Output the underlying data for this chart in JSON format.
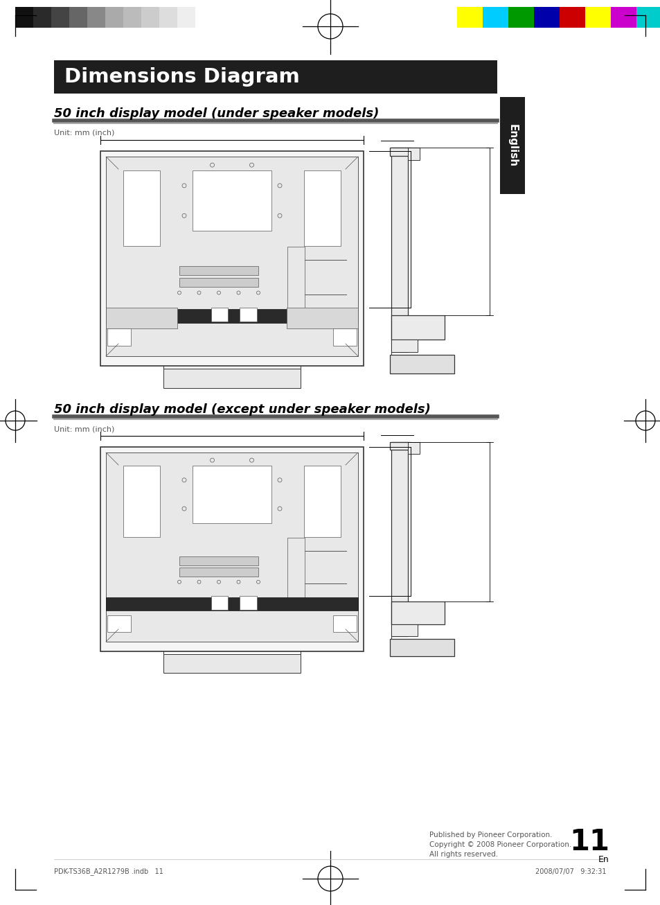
{
  "page_bg": "#ffffff",
  "title_bg": "#1e1e1e",
  "title_text": "Dimensions Diagram",
  "title_text_color": "#ffffff",
  "section1_title": "50 inch display model (under speaker models)",
  "section2_title": "50 inch display model (except under speaker models)",
  "unit_label": "Unit: mm (inch)",
  "english_tab_bg": "#1e1e1e",
  "english_tab_text": "English",
  "divider_color_dark": "#555555",
  "divider_color_light": "#aaaaaa",
  "footer_page": "11",
  "footer_sub": "En",
  "footer_left": "PDK-TS36B_A2R1279B .indb   11",
  "footer_right": "2008/07/07   9:32:31",
  "footer_copyright": "Published by Pioneer Corporation.\nCopyright © 2008 Pioneer Corporation.\nAll rights reserved.",
  "gray_bars": [
    "#111111",
    "#2a2a2a",
    "#444444",
    "#666666",
    "#888888",
    "#aaaaaa",
    "#bbbbbb",
    "#cccccc",
    "#dddddd",
    "#eeeeee"
  ],
  "color_bars": [
    "#ffff00",
    "#00ccff",
    "#009900",
    "#0000aa",
    "#cc0000",
    "#ffff00",
    "#cc00cc",
    "#00cccc"
  ]
}
